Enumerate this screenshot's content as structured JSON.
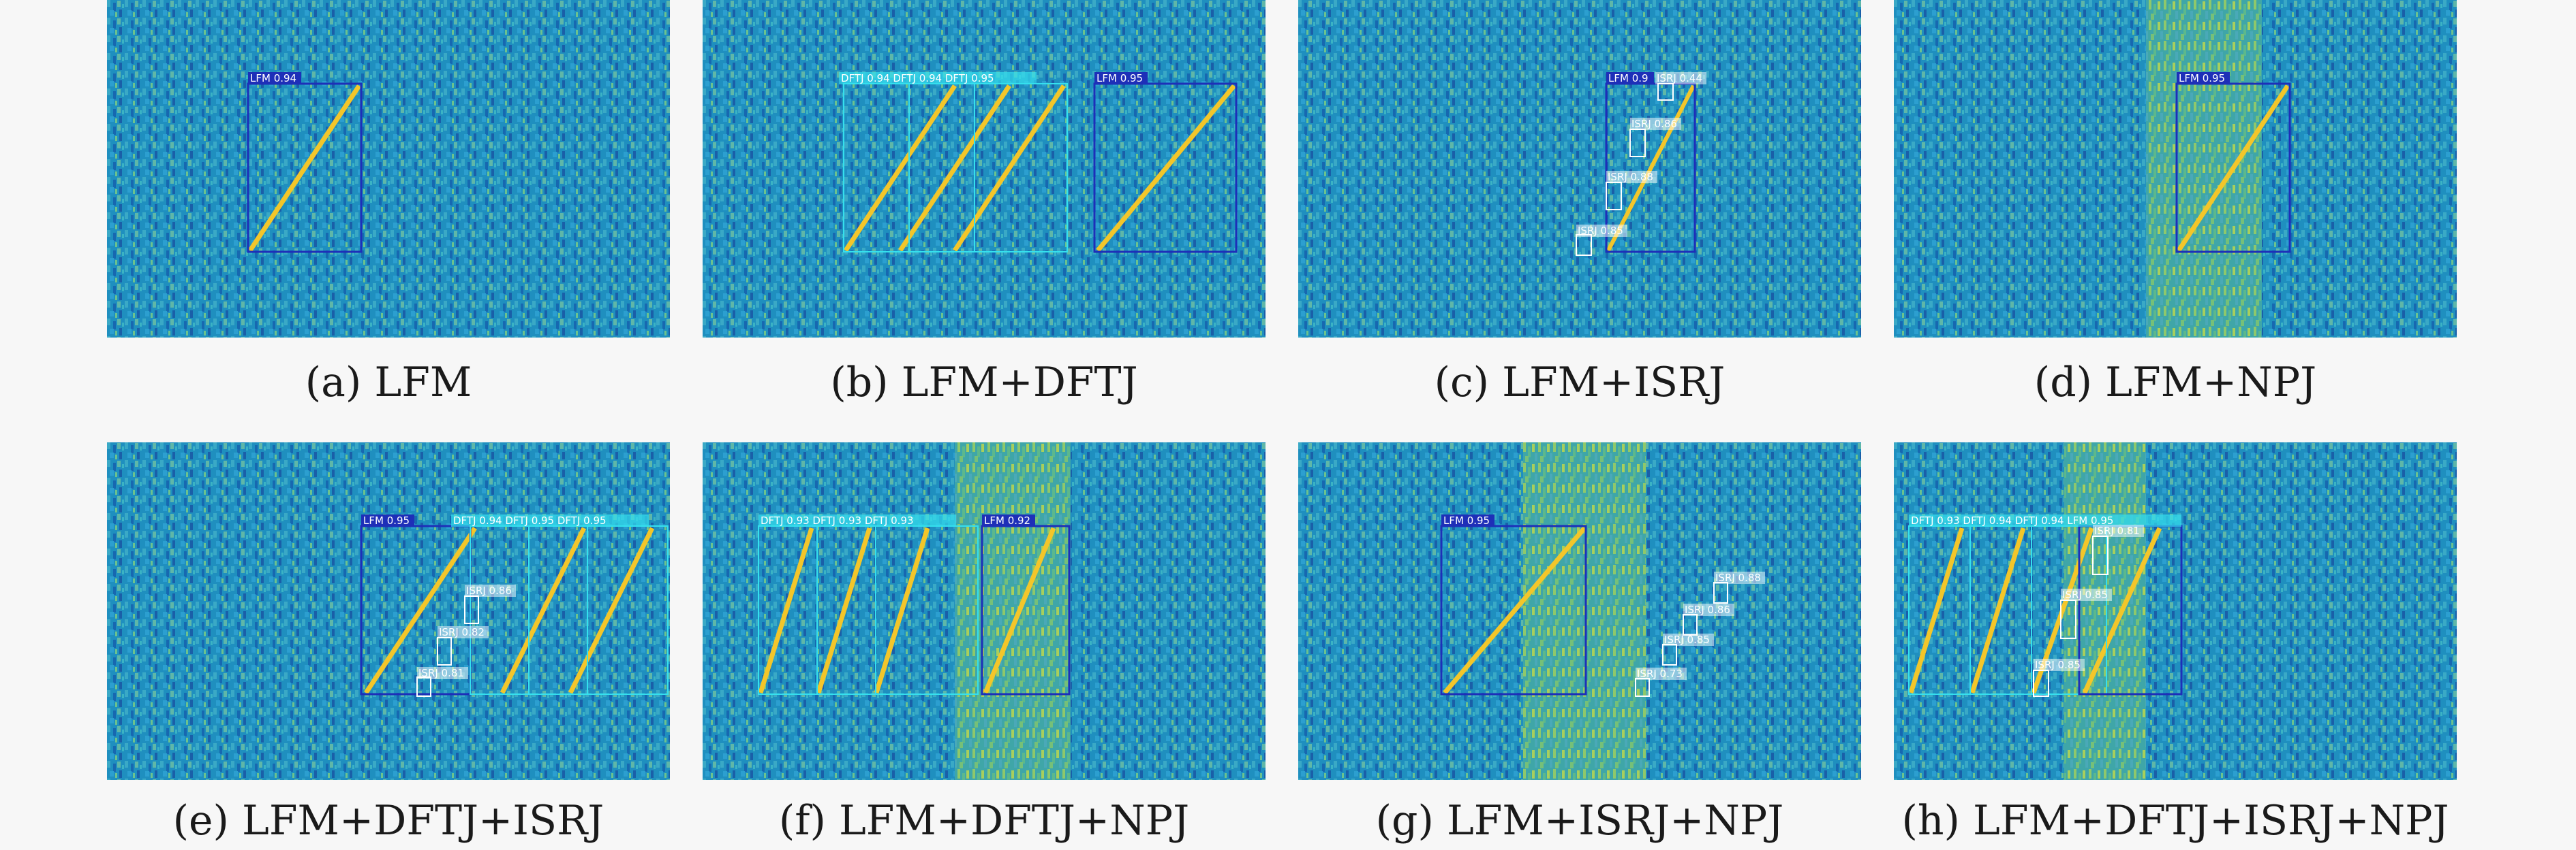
{
  "panels": [
    {
      "caption": "(a) LFM",
      "detections": [
        {
          "label": "LFM 0.94"
        }
      ]
    },
    {
      "caption": "(b) LFM+DFTJ",
      "detections": [
        {
          "label": "DFTJ 0.94 DFTJ 0.94 DFTJ 0.95"
        },
        {
          "label": "LFM 0.95"
        }
      ]
    },
    {
      "caption": "(c) LFM+ISRJ",
      "detections": [
        {
          "label": "LFM 0.9"
        },
        {
          "label": "ISRJ 0.44"
        },
        {
          "label": "ISRJ 0.86"
        },
        {
          "label": "ISRJ 0.88"
        },
        {
          "label": "ISRJ 0.85"
        }
      ]
    },
    {
      "caption": "(d) LFM+NPJ",
      "detections": [
        {
          "label": "LFM 0.95"
        }
      ]
    },
    {
      "caption": "(e) LFM+DFTJ+ISRJ",
      "detections": [
        {
          "label": "LFM 0.95"
        },
        {
          "label": "DFTJ 0.94 DFTJ 0.95 DFTJ 0.95"
        },
        {
          "label": "ISRJ 0.86"
        },
        {
          "label": "ISRJ 0.82"
        },
        {
          "label": "ISRJ 0.81"
        }
      ]
    },
    {
      "caption": "(f) LFM+DFTJ+NPJ",
      "detections": [
        {
          "label": "DFTJ 0.93 DFTJ 0.93 DFTJ 0.93"
        },
        {
          "label": "LFM 0.92"
        }
      ]
    },
    {
      "caption": "(g) LFM+ISRJ+NPJ",
      "detections": [
        {
          "label": "LFM 0.95"
        },
        {
          "label": "ISRJ 0.88"
        },
        {
          "label": "ISRJ 0.86"
        },
        {
          "label": "ISRJ 0.85"
        },
        {
          "label": "ISRJ 0.73"
        }
      ]
    },
    {
      "caption": "(h) LFM+DFTJ+ISRJ+NPJ",
      "detections": [
        {
          "label": "DFTJ 0.93 DFTJ 0.94 DFTJ 0.94 LFM 0.95"
        },
        {
          "label": "ISRJ 0.81"
        },
        {
          "label": "ISRJ 0.85"
        },
        {
          "label": "ISRJ 0.85"
        }
      ]
    }
  ],
  "colors": {
    "background_noise": "#1f8fbf",
    "signal_line": "#f3c62a",
    "lfm_box": "#1e2fb8",
    "jammer_box": "#35e0ee",
    "isrj_box": "#ffffff"
  }
}
